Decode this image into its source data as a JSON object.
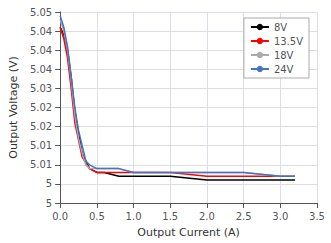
{
  "chart_data": {
    "type": "line",
    "xlabel": "Output Current (A)",
    "ylabel": "Output Voltage (V)",
    "xlim": [
      0,
      3.5
    ],
    "ylim": [
      5.0,
      5.05
    ],
    "xticks": [
      {
        "value": 0,
        "label": "0.0"
      },
      0.5,
      {
        "value": 1.0,
        "label": "1.0"
      },
      1.5,
      {
        "value": 2.0,
        "label": "2.0"
      },
      2.5,
      {
        "value": 3.0,
        "label": "3.0"
      },
      3.5
    ],
    "yticks": [
      5,
      {
        "value": 5.005,
        "label": "5"
      },
      5.01,
      {
        "value": 5.015,
        "label": "5.01"
      },
      5.02,
      {
        "value": 5.025,
        "label": "5.02"
      },
      5.03,
      {
        "value": 5.035,
        "label": "5.04"
      },
      5.04,
      {
        "value": 5.045,
        "label": "5.04"
      },
      5.05
    ],
    "series": [
      {
        "name": "8V",
        "color": "#000000",
        "x": [
          0.0,
          0.05,
          0.1,
          0.15,
          0.2,
          0.3,
          0.4,
          0.5,
          0.6,
          0.8,
          1.0,
          1.5,
          2.0,
          2.5,
          3.0,
          3.2
        ],
        "values": [
          5.046,
          5.044,
          5.04,
          5.033,
          5.024,
          5.013,
          5.009,
          5.008,
          5.008,
          5.007,
          5.007,
          5.007,
          5.006,
          5.006,
          5.006,
          5.006
        ]
      },
      {
        "name": "13.5V",
        "color": "#ff0000",
        "x": [
          0.0,
          0.05,
          0.1,
          0.15,
          0.2,
          0.3,
          0.4,
          0.5,
          0.6,
          0.8,
          1.0,
          1.5,
          2.0,
          2.5,
          3.0,
          3.2
        ],
        "values": [
          5.046,
          5.043,
          5.038,
          5.03,
          5.021,
          5.012,
          5.009,
          5.008,
          5.008,
          5.008,
          5.008,
          5.008,
          5.007,
          5.007,
          5.007,
          5.007
        ]
      },
      {
        "name": "18V",
        "color": "#aaaaaa",
        "x": [
          0.0,
          0.05,
          0.1,
          0.15,
          0.2,
          0.25,
          0.3,
          0.35,
          0.4,
          0.5,
          0.6,
          0.8,
          1.0,
          1.5,
          2.0,
          2.5,
          3.0,
          3.2
        ],
        "values": [
          5.048,
          5.045,
          5.04,
          5.032,
          5.023,
          5.017,
          5.013,
          5.01,
          5.009,
          5.009,
          5.009,
          5.009,
          5.008,
          5.008,
          5.008,
          5.008,
          5.007,
          5.007
        ]
      },
      {
        "name": "24V",
        "color": "#4472c4",
        "x": [
          0.0,
          0.05,
          0.1,
          0.15,
          0.2,
          0.25,
          0.3,
          0.35,
          0.4,
          0.5,
          0.6,
          0.8,
          1.0,
          1.5,
          2.0,
          2.5,
          3.0,
          3.2
        ],
        "values": [
          5.049,
          5.046,
          5.041,
          5.033,
          5.025,
          5.019,
          5.015,
          5.011,
          5.01,
          5.009,
          5.009,
          5.009,
          5.008,
          5.008,
          5.008,
          5.008,
          5.007,
          5.007
        ]
      }
    ],
    "legend": "upper right",
    "grid": true
  }
}
